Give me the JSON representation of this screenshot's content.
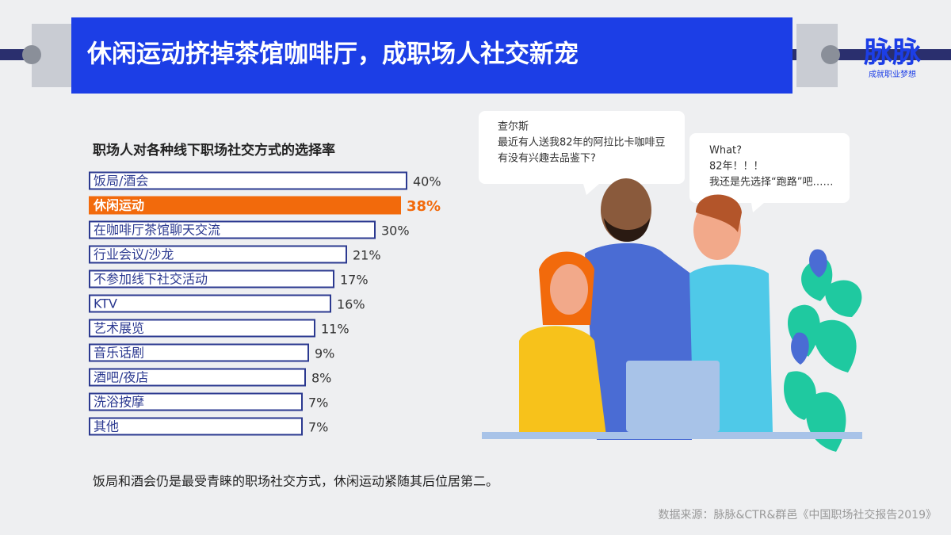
{
  "header": {
    "title": "休闲运动挤掉茶馆咖啡厅，成职场人社交新宠",
    "logo": "脉脉",
    "slogan": "成就职业梦想"
  },
  "chart_data": {
    "type": "bar",
    "orientation": "horizontal",
    "title": "职场人对各种线下职场社交方式的选择率",
    "categories": [
      "饭局/酒会",
      "休闲运动",
      "在咖啡厅茶馆聊天交流",
      "行业会议/沙龙",
      "不参加线下社交活动",
      "KTV",
      "艺术展览",
      "音乐话剧",
      "酒吧/夜店",
      "洗浴按摩",
      "其他"
    ],
    "values": [
      40,
      38,
      30,
      21,
      17,
      16,
      11,
      9,
      8,
      7,
      7
    ],
    "value_labels": [
      "40%",
      "38%",
      "30%",
      "21%",
      "17%",
      "16%",
      "11%",
      "9%",
      "8%",
      "7%",
      "7%"
    ],
    "color": "#2b3990",
    "highlight": 1,
    "highlight_color": "#f26a0c"
  },
  "speech": [
    [
      "查尔斯",
      "最近有人送我82年的阿拉比卡咖啡豆",
      "有没有兴趣去品鉴下?"
    ],
    [
      "What?",
      "82年！！！",
      "我还是先选择“跑路”吧……"
    ]
  ],
  "caption": "饭局和酒会仍是最受青睐的职场社交方式，休闲运动紧随其后位居第二。",
  "source": "数据来源：脉脉&CTR&群邑《中国职场社交报告2019》"
}
